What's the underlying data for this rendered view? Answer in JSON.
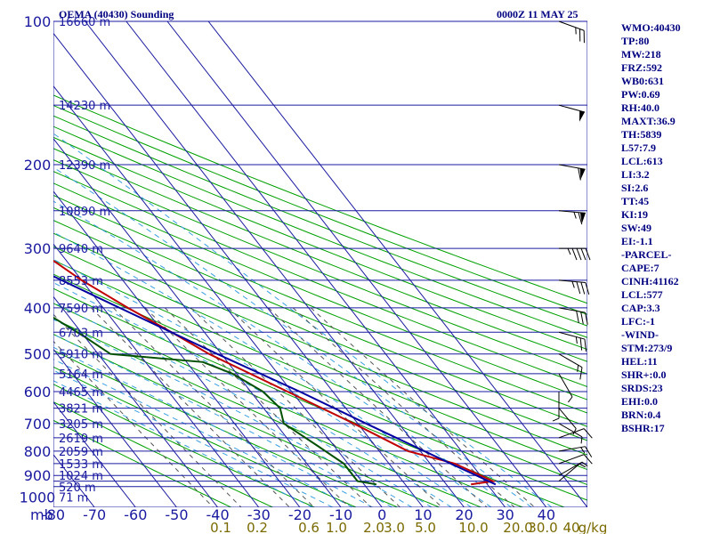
{
  "header": {
    "station": "OEMA (40430) Sounding",
    "time": "0000Z 11 MAY 25"
  },
  "indices": [
    "WMO:40430",
    "TP:80",
    "MW:218",
    "FRZ:592",
    "WB0:631",
    "PW:0.69",
    "RH:40.0",
    "MAXT:36.9",
    "TH:5839",
    "L57:7.9",
    "LCL:613",
    "LI:3.2",
    "SI:2.6",
    "TT:45",
    "KI:19",
    "SW:49",
    "EI:-1.1",
    "-PARCEL-",
    "CAPE:7",
    "CINH:41162",
    "LCL:577",
    "CAP:3.3",
    "LFC:-1",
    "-WIND-",
    "STM:273/9",
    "HEL:11",
    "SHR+:0.0",
    "SRDS:23",
    "EHI:0.0",
    "BRN:0.4",
    "BSHR:17"
  ],
  "chart_data": {
    "type": "line",
    "title": "OEMA (40430) Sounding",
    "subtitle": "0000Z 11 MAY 25",
    "diagram": "skew-T log-P",
    "xlabel": "",
    "ylabel": "mb",
    "y_unit": "mb",
    "y_scale": "log",
    "ylim": [
      1050,
      100
    ],
    "xlim": [
      -80,
      50
    ],
    "x_ticks": [
      -80,
      -70,
      -60,
      -50,
      -40,
      -30,
      -20,
      -10,
      0,
      10,
      20,
      30,
      40
    ],
    "y_ticks": [
      100,
      200,
      300,
      400,
      500,
      600,
      700,
      800,
      900,
      1000
    ],
    "pressure_levels": [
      100,
      150,
      200,
      250,
      300,
      350,
      400,
      450,
      500,
      550,
      600,
      650,
      700,
      750,
      800,
      850,
      900,
      925,
      950
    ],
    "mixing_ratio_labels": [
      "0.1",
      "0.2",
      "0.6",
      "1.0",
      "2.0",
      "3.0",
      "5.0",
      "10.0",
      "20.0",
      "30.0",
      "40"
    ],
    "mixing_ratio_unit": "g/kg",
    "mixing_ratio_values": [
      0.1,
      0.2,
      0.6,
      1.0,
      2.0,
      3.0,
      5.0,
      10.0,
      20.0,
      30.0,
      40.0
    ],
    "height_labels": [
      "16660 m",
      "14230 m",
      "12390 m",
      "10890 m",
      "9640 m",
      "8553 m",
      "7590 m",
      "6703 m",
      "5910 m",
      "5164 m",
      "4465 m",
      "3821 m",
      "3205 m",
      "2619 m",
      "2059 m",
      "1533 m",
      "1024 m",
      "520 m",
      "71 m"
    ],
    "series": [
      {
        "name": "temperature",
        "color": "#c00000",
        "points": [
          [
            940,
            26
          ],
          [
            925,
            32
          ],
          [
            850,
            26
          ],
          [
            800,
            17
          ],
          [
            700,
            9
          ],
          [
            600,
            -1
          ],
          [
            500,
            -13
          ],
          [
            450,
            -18
          ],
          [
            400,
            -24
          ],
          [
            350,
            -30
          ],
          [
            320,
            -33
          ],
          [
            300,
            -37
          ],
          [
            260,
            -40
          ],
          [
            250,
            -40
          ],
          [
            200,
            -50
          ],
          [
            150,
            -60
          ],
          [
            100,
            -74
          ]
        ]
      },
      {
        "name": "dewpoint",
        "color": "#005000",
        "points": [
          [
            940,
            3
          ],
          [
            925,
            -1
          ],
          [
            900,
            -1
          ],
          [
            850,
            -1
          ],
          [
            780,
            -4
          ],
          [
            700,
            -8
          ],
          [
            650,
            -6
          ],
          [
            600,
            -7
          ],
          [
            550,
            -11
          ],
          [
            520,
            -16
          ],
          [
            500,
            -37
          ],
          [
            460,
            -40
          ],
          [
            400,
            -46
          ],
          [
            360,
            -53
          ],
          [
            340,
            -56
          ],
          [
            300,
            -57
          ],
          [
            290,
            -60
          ],
          [
            280,
            -64
          ],
          [
            220,
            -68
          ],
          [
            150,
            -76
          ],
          [
            100,
            -82
          ]
        ]
      },
      {
        "name": "parcel",
        "color": "#0000a0",
        "points": [
          [
            940,
            32
          ],
          [
            900,
            29
          ],
          [
            850,
            25
          ],
          [
            800,
            21
          ],
          [
            700,
            12
          ],
          [
            600,
            2
          ],
          [
            500,
            -11
          ],
          [
            400,
            -26
          ],
          [
            300,
            -45
          ],
          [
            200,
            -62
          ],
          [
            150,
            -77
          ],
          [
            100,
            -95
          ]
        ]
      }
    ],
    "wind": [
      {
        "p": 100,
        "dir": 290,
        "spd": 25
      },
      {
        "p": 150,
        "dir": 285,
        "spd": 50
      },
      {
        "p": 200,
        "dir": 280,
        "spd": 60
      },
      {
        "p": 250,
        "dir": 275,
        "spd": 65
      },
      {
        "p": 300,
        "dir": 270,
        "spd": 45
      },
      {
        "p": 350,
        "dir": 275,
        "spd": 35
      },
      {
        "p": 400,
        "dir": 280,
        "spd": 30
      },
      {
        "p": 450,
        "dir": 285,
        "spd": 25
      },
      {
        "p": 500,
        "dir": 300,
        "spd": 15
      },
      {
        "p": 550,
        "dir": 330,
        "spd": 5
      },
      {
        "p": 600,
        "dir": 0,
        "spd": 5
      },
      {
        "p": 650,
        "dir": 320,
        "spd": 5
      },
      {
        "p": 700,
        "dir": 300,
        "spd": 5
      },
      {
        "p": 750,
        "dir": 250,
        "spd": 10
      },
      {
        "p": 800,
        "dir": 260,
        "spd": 15
      },
      {
        "p": 850,
        "dir": 250,
        "spd": 10
      },
      {
        "p": 900,
        "dir": 240,
        "spd": 5
      },
      {
        "p": 925,
        "dir": 230,
        "spd": 5
      }
    ],
    "grid": true
  }
}
